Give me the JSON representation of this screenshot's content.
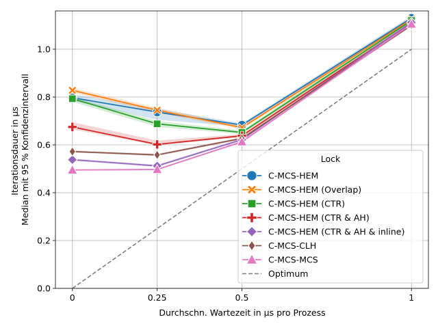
{
  "chart_data": {
    "type": "line",
    "xlabel": "Durchschn. Wartezeit in µs pro Prozess",
    "ylabel_lines": [
      "Iterationsdauer in µs",
      "Median mit 95 % Konfidenzintervall"
    ],
    "x": [
      0,
      0.25,
      0.5,
      1
    ],
    "x_tick_labels": [
      "0",
      "0.25",
      "0.5",
      "1"
    ],
    "xlim": [
      -0.05,
      1.05
    ],
    "ylim": [
      0.0,
      1.16
    ],
    "y_ticks": [
      0.0,
      0.2,
      0.4,
      0.6,
      0.8,
      1.0
    ],
    "y_tick_labels": [
      "0.0",
      "0.2",
      "0.4",
      "0.6",
      "0.8",
      "1.0"
    ],
    "grid": true,
    "legend": {
      "title": "Lock",
      "placement": "lower-right"
    },
    "series": [
      {
        "name": "C-MCS-HEM",
        "color": "#1f77b4",
        "marker": "circle",
        "values": [
          0.797,
          0.737,
          0.683,
          1.13
        ],
        "ci_low": [
          0.785,
          0.705,
          0.676,
          1.12
        ],
        "ci_high": [
          0.812,
          0.752,
          0.69,
          1.14
        ]
      },
      {
        "name": "C-MCS-HEM (Overlap)",
        "color": "#ff7f0e",
        "marker": "x",
        "values": [
          0.828,
          0.745,
          0.672,
          1.125
        ],
        "ci_low": [
          0.818,
          0.735,
          0.665,
          1.115
        ],
        "ci_high": [
          0.838,
          0.755,
          0.68,
          1.135
        ]
      },
      {
        "name": "C-MCS-HEM (CTR)",
        "color": "#2ca02c",
        "marker": "square",
        "values": [
          0.793,
          0.688,
          0.652,
          1.12
        ],
        "ci_low": [
          0.78,
          0.675,
          0.645,
          1.11
        ],
        "ci_high": [
          0.8,
          0.7,
          0.66,
          1.13
        ]
      },
      {
        "name": "C-MCS-HEM (CTR & AH)",
        "color": "#d62728",
        "marker": "plus",
        "values": [
          0.675,
          0.602,
          0.638,
          1.11
        ],
        "ci_low": [
          0.665,
          0.598,
          0.632,
          1.1
        ],
        "ci_high": [
          0.695,
          0.618,
          0.645,
          1.12
        ]
      },
      {
        "name": "C-MCS-HEM (CTR & AH & inline)",
        "color": "#9467bd",
        "marker": "diamond",
        "values": [
          0.538,
          0.512,
          0.622,
          1.112
        ],
        "ci_low": [
          0.533,
          0.507,
          0.617,
          1.105
        ],
        "ci_high": [
          0.543,
          0.517,
          0.627,
          1.12
        ]
      },
      {
        "name": "C-MCS-CLH",
        "color": "#8c564b",
        "marker": "thin_diamond",
        "values": [
          0.572,
          0.558,
          0.627,
          1.1
        ],
        "ci_low": [
          0.568,
          0.553,
          0.622,
          1.095
        ],
        "ci_high": [
          0.577,
          0.563,
          0.632,
          1.105
        ]
      },
      {
        "name": "C-MCS-MCS",
        "color": "#e377c2",
        "marker": "triangle",
        "values": [
          0.495,
          0.497,
          0.613,
          1.105
        ],
        "ci_low": [
          0.492,
          0.494,
          0.608,
          1.098
        ],
        "ci_high": [
          0.498,
          0.5,
          0.618,
          1.112
        ]
      },
      {
        "name": "Optimum",
        "color": "#7f7f7f",
        "marker": "none",
        "dashed": true,
        "x": [
          0,
          1
        ],
        "values": [
          0.0,
          1.0
        ]
      }
    ]
  }
}
